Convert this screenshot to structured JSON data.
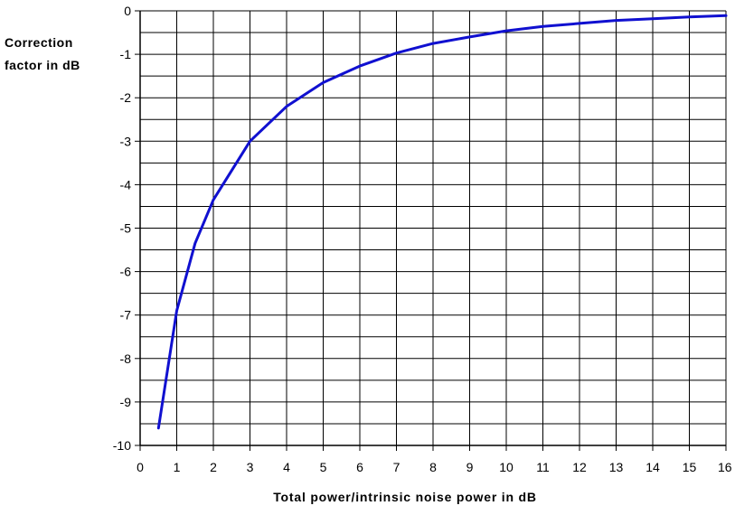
{
  "chart_data": {
    "type": "line",
    "ylabel_lines": [
      "Correction",
      "factor in dB"
    ],
    "xlabel": "Total power/intrinsic noise power in dB",
    "xlim": [
      0,
      16
    ],
    "ylim": [
      -10,
      0
    ],
    "x_ticks": [
      "0",
      "1",
      "2",
      "3",
      "4",
      "5",
      "6",
      "7",
      "8",
      "9",
      "10",
      "11",
      "12",
      "13",
      "14",
      "15",
      "16"
    ],
    "y_ticks": [
      "0",
      "-1",
      "-2",
      "-3",
      "-4",
      "-5",
      "-6",
      "-7",
      "-8",
      "-9",
      "-10"
    ],
    "grid": true,
    "series": [
      {
        "color": "#1010d0",
        "x": [
          0.5,
          1,
          1.5,
          2,
          3,
          4,
          5,
          6,
          7,
          8,
          9,
          10,
          11,
          12,
          13,
          14,
          15,
          16
        ],
        "y": [
          -9.6,
          -6.9,
          -5.35,
          -4.35,
          -3.0,
          -2.2,
          -1.65,
          -1.27,
          -0.97,
          -0.75,
          -0.6,
          -0.46,
          -0.36,
          -0.29,
          -0.22,
          -0.18,
          -0.14,
          -0.11
        ]
      }
    ]
  }
}
